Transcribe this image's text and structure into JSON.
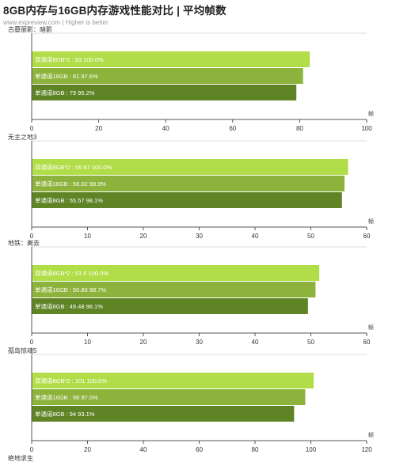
{
  "header": {
    "title": "8GB内存与16GB内存游戏性能对比 | 平均帧数",
    "subtitle": "www.expreview.com | Higher is better"
  },
  "colors": {
    "dual": "#b1dd49",
    "single16": "#8db33c",
    "single8": "#5f8426",
    "axis": "#555555"
  },
  "chart_data": [
    {
      "type": "bar",
      "orientation": "horizontal",
      "title": "古墓丽影：暗影",
      "unit": "帧",
      "xlim": [
        0,
        100
      ],
      "ticks": [
        0,
        20,
        40,
        60,
        80,
        100
      ],
      "bars": [
        {
          "label": "双通道8GB*2 : 83  100.0%",
          "value": 83
        },
        {
          "label": "单通道16GB : 81  97.6%",
          "value": 81
        },
        {
          "label": "单通道8GB : 79  95.2%",
          "value": 79
        }
      ]
    },
    {
      "type": "bar",
      "orientation": "horizontal",
      "title": "无主之地3",
      "unit": "帧",
      "xlim": [
        0,
        60
      ],
      "ticks": [
        0,
        10,
        20,
        30,
        40,
        50,
        60
      ],
      "bars": [
        {
          "label": "双通道8GB*2 : 56.67  100.0%",
          "value": 56.67
        },
        {
          "label": "单通道16GB : 56.02  98.9%",
          "value": 56.02
        },
        {
          "label": "单通道8GB : 55.57  98.1%",
          "value": 55.57
        }
      ]
    },
    {
      "type": "bar",
      "orientation": "horizontal",
      "title": "地铁：离去",
      "unit": "帧",
      "xlim": [
        0,
        60
      ],
      "ticks": [
        0,
        10,
        20,
        30,
        40,
        50,
        60
      ],
      "bars": [
        {
          "label": "双通道8GB*2 : 51.5  100.0%",
          "value": 51.5
        },
        {
          "label": "单通道16GB : 50.83  98.7%",
          "value": 50.83
        },
        {
          "label": "单通道8GB : 49.48  96.1%",
          "value": 49.48
        }
      ]
    },
    {
      "type": "bar",
      "orientation": "horizontal",
      "title": "孤岛惊魂5",
      "unit": "帧",
      "xlim": [
        0,
        120
      ],
      "ticks": [
        0,
        20,
        40,
        60,
        80,
        100,
        120
      ],
      "bars": [
        {
          "label": "双通道8GB*2 : 101  100.0%",
          "value": 101
        },
        {
          "label": "单通道16GB : 98  97.0%",
          "value": 98
        },
        {
          "label": "单通道8GB : 94  93.1%",
          "value": 94
        }
      ]
    },
    {
      "type": "bar",
      "orientation": "horizontal",
      "title": "绝地求生",
      "bars": []
    }
  ]
}
